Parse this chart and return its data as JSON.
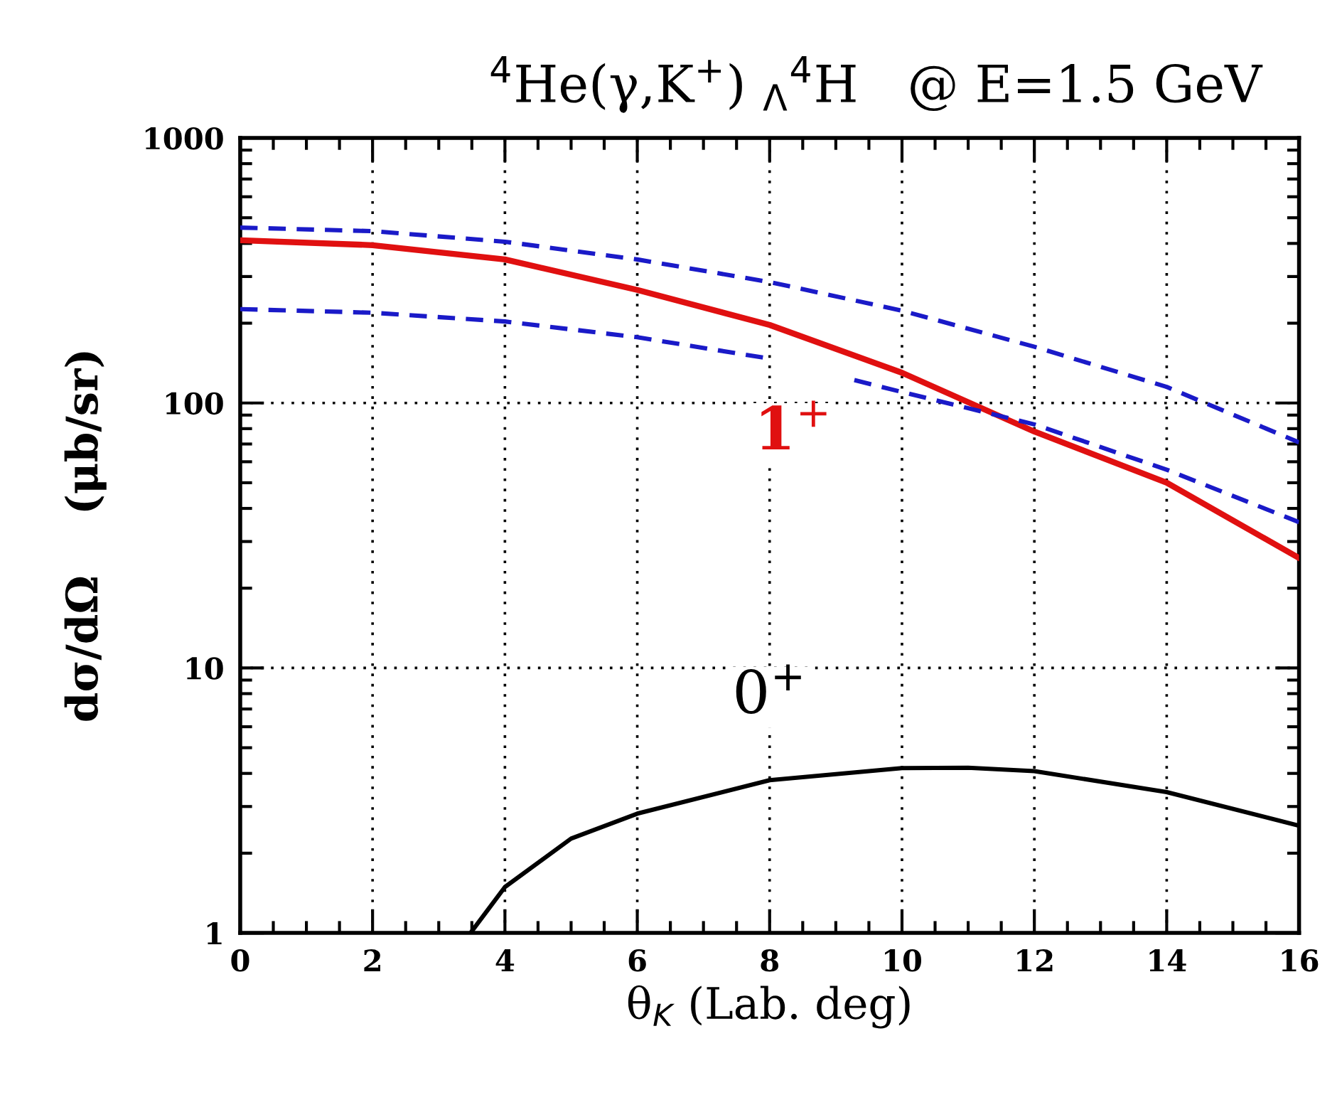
{
  "chart_data": {
    "type": "line",
    "title": "$^{4}$He(γ,K$^{+}$) $_{Λ}$$^{4}$H   @ E=1.5 GeV",
    "xlabel": "θ$_{K}$ (Lab. deg)",
    "ylabel": "dσ/dΩ    (μb/sr)",
    "log": "y",
    "grid": true,
    "marker": "none",
    "xlim": [
      0,
      16
    ],
    "xticks": [
      0,
      2,
      4,
      6,
      8,
      10,
      12,
      14,
      16
    ],
    "ylim": [
      1,
      1000
    ],
    "yticks": [
      1,
      10,
      100,
      1000
    ],
    "series": [
      {
        "name": "1$^{+}$",
        "color": "#e01010",
        "line_style": "solid",
        "x": [
          0,
          2,
          4,
          6,
          8,
          10,
          12,
          14,
          16
        ],
        "values": [
          411,
          394,
          348,
          267,
          197,
          130,
          78,
          50,
          26
        ]
      },
      {
        "color": "#1a1ac8",
        "line_style": "dashed",
        "x": [
          0,
          2,
          4,
          6,
          8,
          10,
          12,
          14,
          16
        ],
        "values": [
          459,
          445,
          406,
          348,
          286,
          223,
          163,
          115,
          71
        ]
      },
      {
        "color": "#1a1ac8",
        "line_style": "dashed",
        "x": [
          0,
          2,
          4,
          6,
          8,
          8.6,
          9.28,
          10,
          12,
          14,
          16
        ],
        "values": [
          226,
          219,
          203,
          177,
          147,
          null,
          122,
          110,
          83,
          56,
          35.5
        ]
      },
      {
        "name": "0$^{+}$",
        "color": "#000000",
        "line_style": "solid",
        "x": [
          3.48,
          4,
          5,
          6,
          8,
          10,
          11,
          12,
          14,
          16
        ],
        "values": [
          1,
          1.49,
          2.27,
          2.82,
          3.77,
          4.19,
          4.2,
          4.08,
          3.4,
          2.54
        ]
      }
    ]
  }
}
